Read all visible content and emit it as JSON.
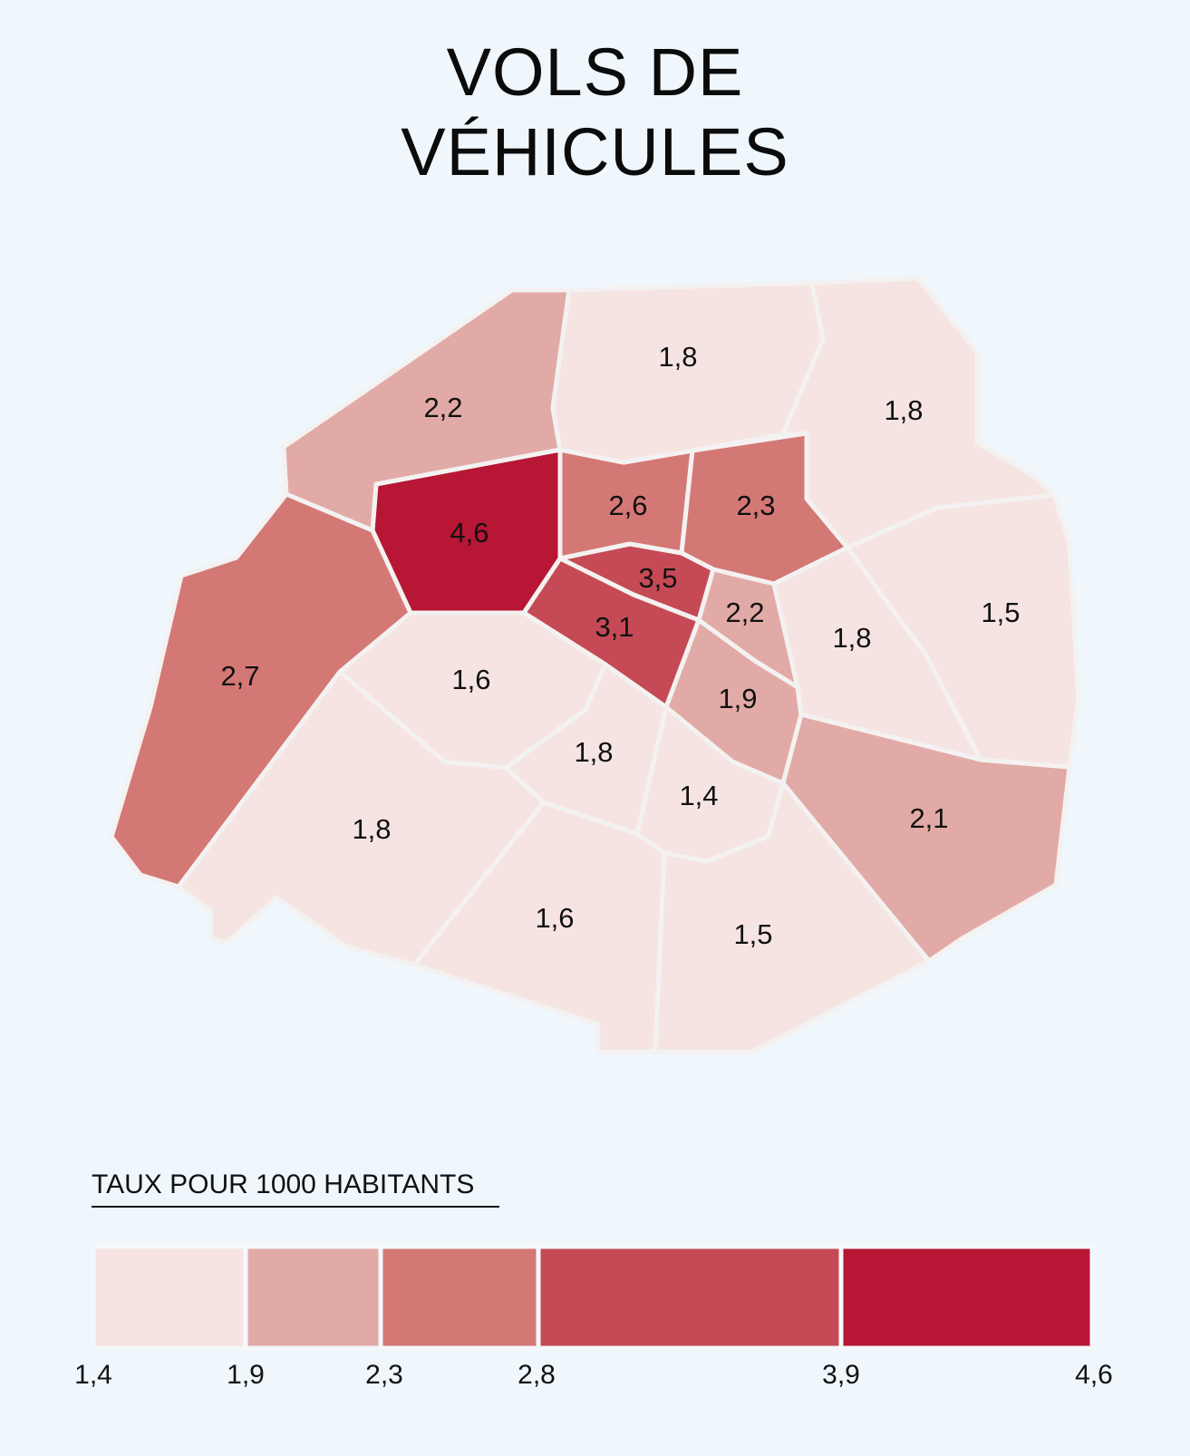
{
  "title": [
    "VOLS DE",
    "VÉHICULES"
  ],
  "map_data": {
    "districts": [
      {
        "id": "a1",
        "value": "4,6",
        "color": "#b81635"
      },
      {
        "id": "a2",
        "value": "2,6",
        "color": "#d47876"
      },
      {
        "id": "a3",
        "value": "2,3",
        "color": "#d47876"
      },
      {
        "id": "a4",
        "value": "3,5",
        "color": "#c54a55"
      },
      {
        "id": "a5",
        "value": "3,1",
        "color": "#c54a55"
      },
      {
        "id": "a6",
        "value": "2,2",
        "color": "#e2aaa6"
      },
      {
        "id": "a7",
        "value": "1,9",
        "color": "#e2aaa6"
      },
      {
        "id": "a8",
        "value": "1,6",
        "color": "#f6e4e3"
      },
      {
        "id": "a9",
        "value": "1,8",
        "color": "#f6e4e3"
      },
      {
        "id": "a10",
        "value": "1,4",
        "color": "#f6e4e3"
      },
      {
        "id": "a11",
        "value": "1,8",
        "color": "#f6e4e3"
      },
      {
        "id": "a12",
        "value": "2,1",
        "color": "#e2aaa6"
      },
      {
        "id": "a13",
        "value": "1,5",
        "color": "#f6e4e3"
      },
      {
        "id": "a14",
        "value": "1,8",
        "color": "#f6e4e3"
      },
      {
        "id": "a15",
        "value": "1,6",
        "color": "#f6e4e3"
      },
      {
        "id": "a16",
        "value": "2,7",
        "color": "#d47876"
      },
      {
        "id": "a17",
        "value": "2,2",
        "color": "#e2aaa6"
      },
      {
        "id": "a18",
        "value": "1,8",
        "color": "#f6e4e3"
      },
      {
        "id": "a19",
        "value": "1,8",
        "color": "#f6e4e3"
      },
      {
        "id": "a20",
        "value": "1,5",
        "color": "#f6e4e3"
      }
    ]
  },
  "legend": {
    "title": "TAUX POUR 1000 HABITANTS",
    "bins": [
      {
        "from": 1.4,
        "to": 1.9,
        "color": "#f6e4e3"
      },
      {
        "from": 1.9,
        "to": 2.3,
        "color": "#e2aaa6"
      },
      {
        "from": 2.3,
        "to": 2.8,
        "color": "#d47876"
      },
      {
        "from": 2.8,
        "to": 3.9,
        "color": "#c54a55"
      },
      {
        "from": 3.9,
        "to": 4.6,
        "color": "#b81635"
      }
    ],
    "ticks": [
      "1,4",
      "1,9",
      "2,3",
      "2,8",
      "3,9",
      "4,6"
    ]
  }
}
